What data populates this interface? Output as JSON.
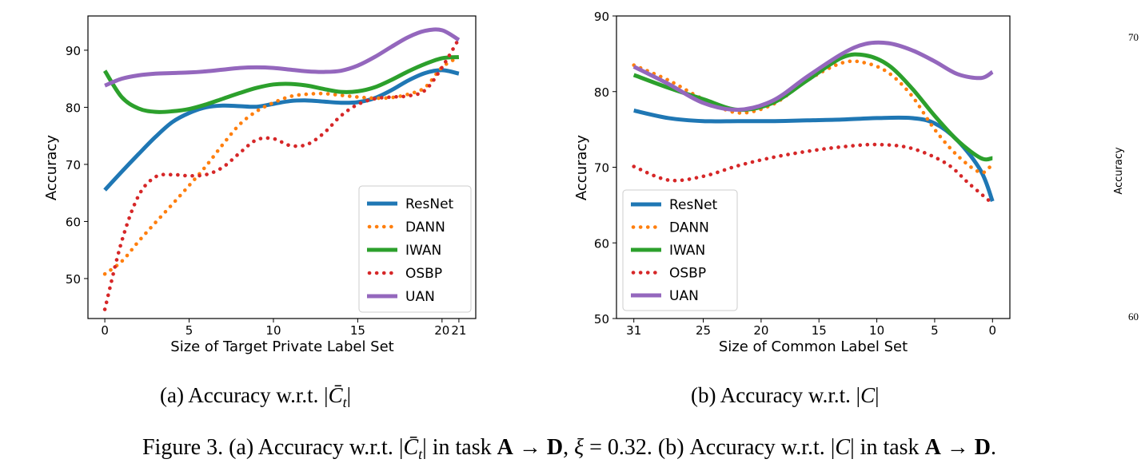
{
  "figure_caption": "Figure 3. (a) Accuracy w.r.t. |C̄t| in task A → D, ξ = 0.32. (b) Accuracy w.r.t. |C| in task A → D.",
  "chart_data": [
    {
      "type": "line",
      "caption": "(a)  Accuracy w.r.t. |C̄t|",
      "xlabel": "Size of Target Private Label Set",
      "ylabel": "Accuracy",
      "xlim": [
        -1,
        22
      ],
      "ylim": [
        43,
        96
      ],
      "xticks": [
        0,
        5,
        10,
        15,
        20,
        21
      ],
      "yticks": [
        50,
        60,
        70,
        80,
        90
      ],
      "grid": false,
      "legend_position": "lower-right",
      "series": [
        {
          "name": "ResNet",
          "color": "#1f77b4",
          "dash": "solid",
          "points": [
            [
              0,
              65.5
            ],
            [
              1,
              68.7
            ],
            [
              2,
              71.8
            ],
            [
              3,
              74.8
            ],
            [
              4,
              77.4
            ],
            [
              5,
              79.0
            ],
            [
              6,
              80.0
            ],
            [
              7,
              80.3
            ],
            [
              8,
              80.2
            ],
            [
              9,
              80.1
            ],
            [
              10,
              80.6
            ],
            [
              11,
              81.1
            ],
            [
              12,
              81.2
            ],
            [
              13,
              81.0
            ],
            [
              14,
              80.8
            ],
            [
              15,
              80.9
            ],
            [
              16,
              81.6
            ],
            [
              17,
              83.0
            ],
            [
              18,
              84.7
            ],
            [
              19,
              86.0
            ],
            [
              20,
              86.5
            ],
            [
              21,
              85.9
            ]
          ]
        },
        {
          "name": "DANN",
          "color": "#ff7f0e",
          "dash": "dot",
          "points": [
            [
              0,
              50.8
            ],
            [
              1,
              53.0
            ],
            [
              2,
              56.5
            ],
            [
              3,
              59.8
            ],
            [
              4,
              63.0
            ],
            [
              5,
              66.3
            ],
            [
              6,
              69.7
            ],
            [
              7,
              73.5
            ],
            [
              8,
              77.0
            ],
            [
              9,
              79.3
            ],
            [
              10,
              80.8
            ],
            [
              11,
              81.9
            ],
            [
              12,
              82.3
            ],
            [
              13,
              82.4
            ],
            [
              14,
              82.1
            ],
            [
              15,
              81.8
            ],
            [
              16,
              81.6
            ],
            [
              17,
              81.7
            ],
            [
              18,
              82.3
            ],
            [
              19,
              83.5
            ],
            [
              20,
              87.0
            ],
            [
              21,
              88.8
            ]
          ]
        },
        {
          "name": "IWAN",
          "color": "#2ca02c",
          "dash": "solid",
          "points": [
            [
              0,
              86.4
            ],
            [
              1,
              81.8
            ],
            [
              2,
              79.8
            ],
            [
              3,
              79.2
            ],
            [
              4,
              79.3
            ],
            [
              5,
              79.7
            ],
            [
              6,
              80.5
            ],
            [
              7,
              81.5
            ],
            [
              8,
              82.5
            ],
            [
              9,
              83.4
            ],
            [
              10,
              84.0
            ],
            [
              11,
              84.1
            ],
            [
              12,
              83.8
            ],
            [
              13,
              83.2
            ],
            [
              14,
              82.7
            ],
            [
              15,
              82.8
            ],
            [
              16,
              83.5
            ],
            [
              17,
              84.8
            ],
            [
              18,
              86.3
            ],
            [
              19,
              87.6
            ],
            [
              20,
              88.6
            ],
            [
              21,
              88.8
            ]
          ]
        },
        {
          "name": "OSBP",
          "color": "#d62728",
          "dash": "dot",
          "points": [
            [
              0,
              44.6
            ],
            [
              1,
              56.5
            ],
            [
              2,
              64.5
            ],
            [
              3,
              67.8
            ],
            [
              4,
              68.2
            ],
            [
              5,
              68.0
            ],
            [
              6,
              68.2
            ],
            [
              7,
              69.5
            ],
            [
              8,
              72.0
            ],
            [
              9,
              74.3
            ],
            [
              10,
              74.5
            ],
            [
              11,
              73.3
            ],
            [
              12,
              73.5
            ],
            [
              13,
              75.5
            ],
            [
              14,
              78.5
            ],
            [
              15,
              80.5
            ],
            [
              16,
              81.5
            ],
            [
              17,
              81.8
            ],
            [
              18,
              82.0
            ],
            [
              19,
              83.0
            ],
            [
              20,
              87.0
            ],
            [
              21,
              92.0
            ]
          ]
        },
        {
          "name": "UAN",
          "color": "#9467bd",
          "dash": "solid",
          "points": [
            [
              0,
              83.8
            ],
            [
              1,
              85.0
            ],
            [
              2,
              85.6
            ],
            [
              3,
              85.9
            ],
            [
              4,
              86.0
            ],
            [
              5,
              86.1
            ],
            [
              6,
              86.3
            ],
            [
              7,
              86.6
            ],
            [
              8,
              86.9
            ],
            [
              9,
              87.0
            ],
            [
              10,
              86.9
            ],
            [
              11,
              86.6
            ],
            [
              12,
              86.3
            ],
            [
              13,
              86.2
            ],
            [
              14,
              86.4
            ],
            [
              15,
              87.3
            ],
            [
              16,
              88.8
            ],
            [
              17,
              90.6
            ],
            [
              18,
              92.3
            ],
            [
              19,
              93.4
            ],
            [
              20,
              93.5
            ],
            [
              21,
              91.8
            ]
          ]
        }
      ]
    },
    {
      "type": "line",
      "caption": "(b)  Accuracy w.r.t. |C|",
      "xlabel": "Size of Common Label Set",
      "ylabel": "Accuracy",
      "xlim": [
        32.5,
        -1.5
      ],
      "ylim": [
        50,
        90
      ],
      "xticks": [
        31,
        25,
        20,
        15,
        10,
        5,
        0
      ],
      "yticks": [
        50,
        60,
        70,
        80,
        90
      ],
      "grid": false,
      "legend_position": "lower-left",
      "series": [
        {
          "name": "ResNet",
          "color": "#1f77b4",
          "dash": "solid",
          "points": [
            [
              31,
              77.5
            ],
            [
              28,
              76.5
            ],
            [
              25,
              76.1
            ],
            [
              22,
              76.1
            ],
            [
              19,
              76.1
            ],
            [
              16,
              76.2
            ],
            [
              13,
              76.3
            ],
            [
              10,
              76.5
            ],
            [
              7,
              76.5
            ],
            [
              5,
              75.8
            ],
            [
              3,
              73.5
            ],
            [
              1,
              69.5
            ],
            [
              0,
              65.5
            ]
          ]
        },
        {
          "name": "DANN",
          "color": "#ff7f0e",
          "dash": "dot",
          "points": [
            [
              31,
              83.5
            ],
            [
              28,
              81.5
            ],
            [
              25,
              79.0
            ],
            [
              22,
              77.2
            ],
            [
              19,
              78.3
            ],
            [
              16,
              81.5
            ],
            [
              13,
              83.8
            ],
            [
              11,
              83.8
            ],
            [
              9,
              82.5
            ],
            [
              7,
              79.5
            ],
            [
              5,
              75.0
            ],
            [
              3,
              71.5
            ],
            [
              1,
              69.3
            ],
            [
              0,
              70.5
            ]
          ]
        },
        {
          "name": "IWAN",
          "color": "#2ca02c",
          "dash": "solid",
          "points": [
            [
              31,
              82.2
            ],
            [
              28,
              80.5
            ],
            [
              25,
              79.0
            ],
            [
              22,
              77.6
            ],
            [
              19,
              78.5
            ],
            [
              16,
              81.5
            ],
            [
              13,
              84.5
            ],
            [
              11,
              84.8
            ],
            [
              9,
              83.5
            ],
            [
              7,
              80.5
            ],
            [
              5,
              76.8
            ],
            [
              3,
              73.5
            ],
            [
              1,
              71.2
            ],
            [
              0,
              71.2
            ]
          ]
        },
        {
          "name": "OSBP",
          "color": "#d62728",
          "dash": "dot",
          "points": [
            [
              31,
              70.1
            ],
            [
              28,
              68.3
            ],
            [
              25,
              68.8
            ],
            [
              22,
              70.2
            ],
            [
              19,
              71.3
            ],
            [
              16,
              72.1
            ],
            [
              13,
              72.7
            ],
            [
              10,
              73.0
            ],
            [
              7,
              72.5
            ],
            [
              4,
              70.5
            ],
            [
              2,
              67.8
            ],
            [
              0,
              65.2
            ]
          ]
        },
        {
          "name": "UAN",
          "color": "#9467bd",
          "dash": "solid",
          "points": [
            [
              31,
              83.3
            ],
            [
              28,
              81.0
            ],
            [
              25,
              78.5
            ],
            [
              22,
              77.6
            ],
            [
              19,
              78.8
            ],
            [
              16,
              82.0
            ],
            [
              13,
              85.0
            ],
            [
              11,
              86.3
            ],
            [
              9,
              86.4
            ],
            [
              7,
              85.5
            ],
            [
              5,
              84.0
            ],
            [
              3,
              82.3
            ],
            [
              1,
              81.8
            ],
            [
              0,
              82.6
            ]
          ]
        }
      ]
    },
    {
      "type": "line",
      "partial": true,
      "ylabel": "Accuracy",
      "ytick_labels": [
        "70",
        "60"
      ]
    }
  ]
}
